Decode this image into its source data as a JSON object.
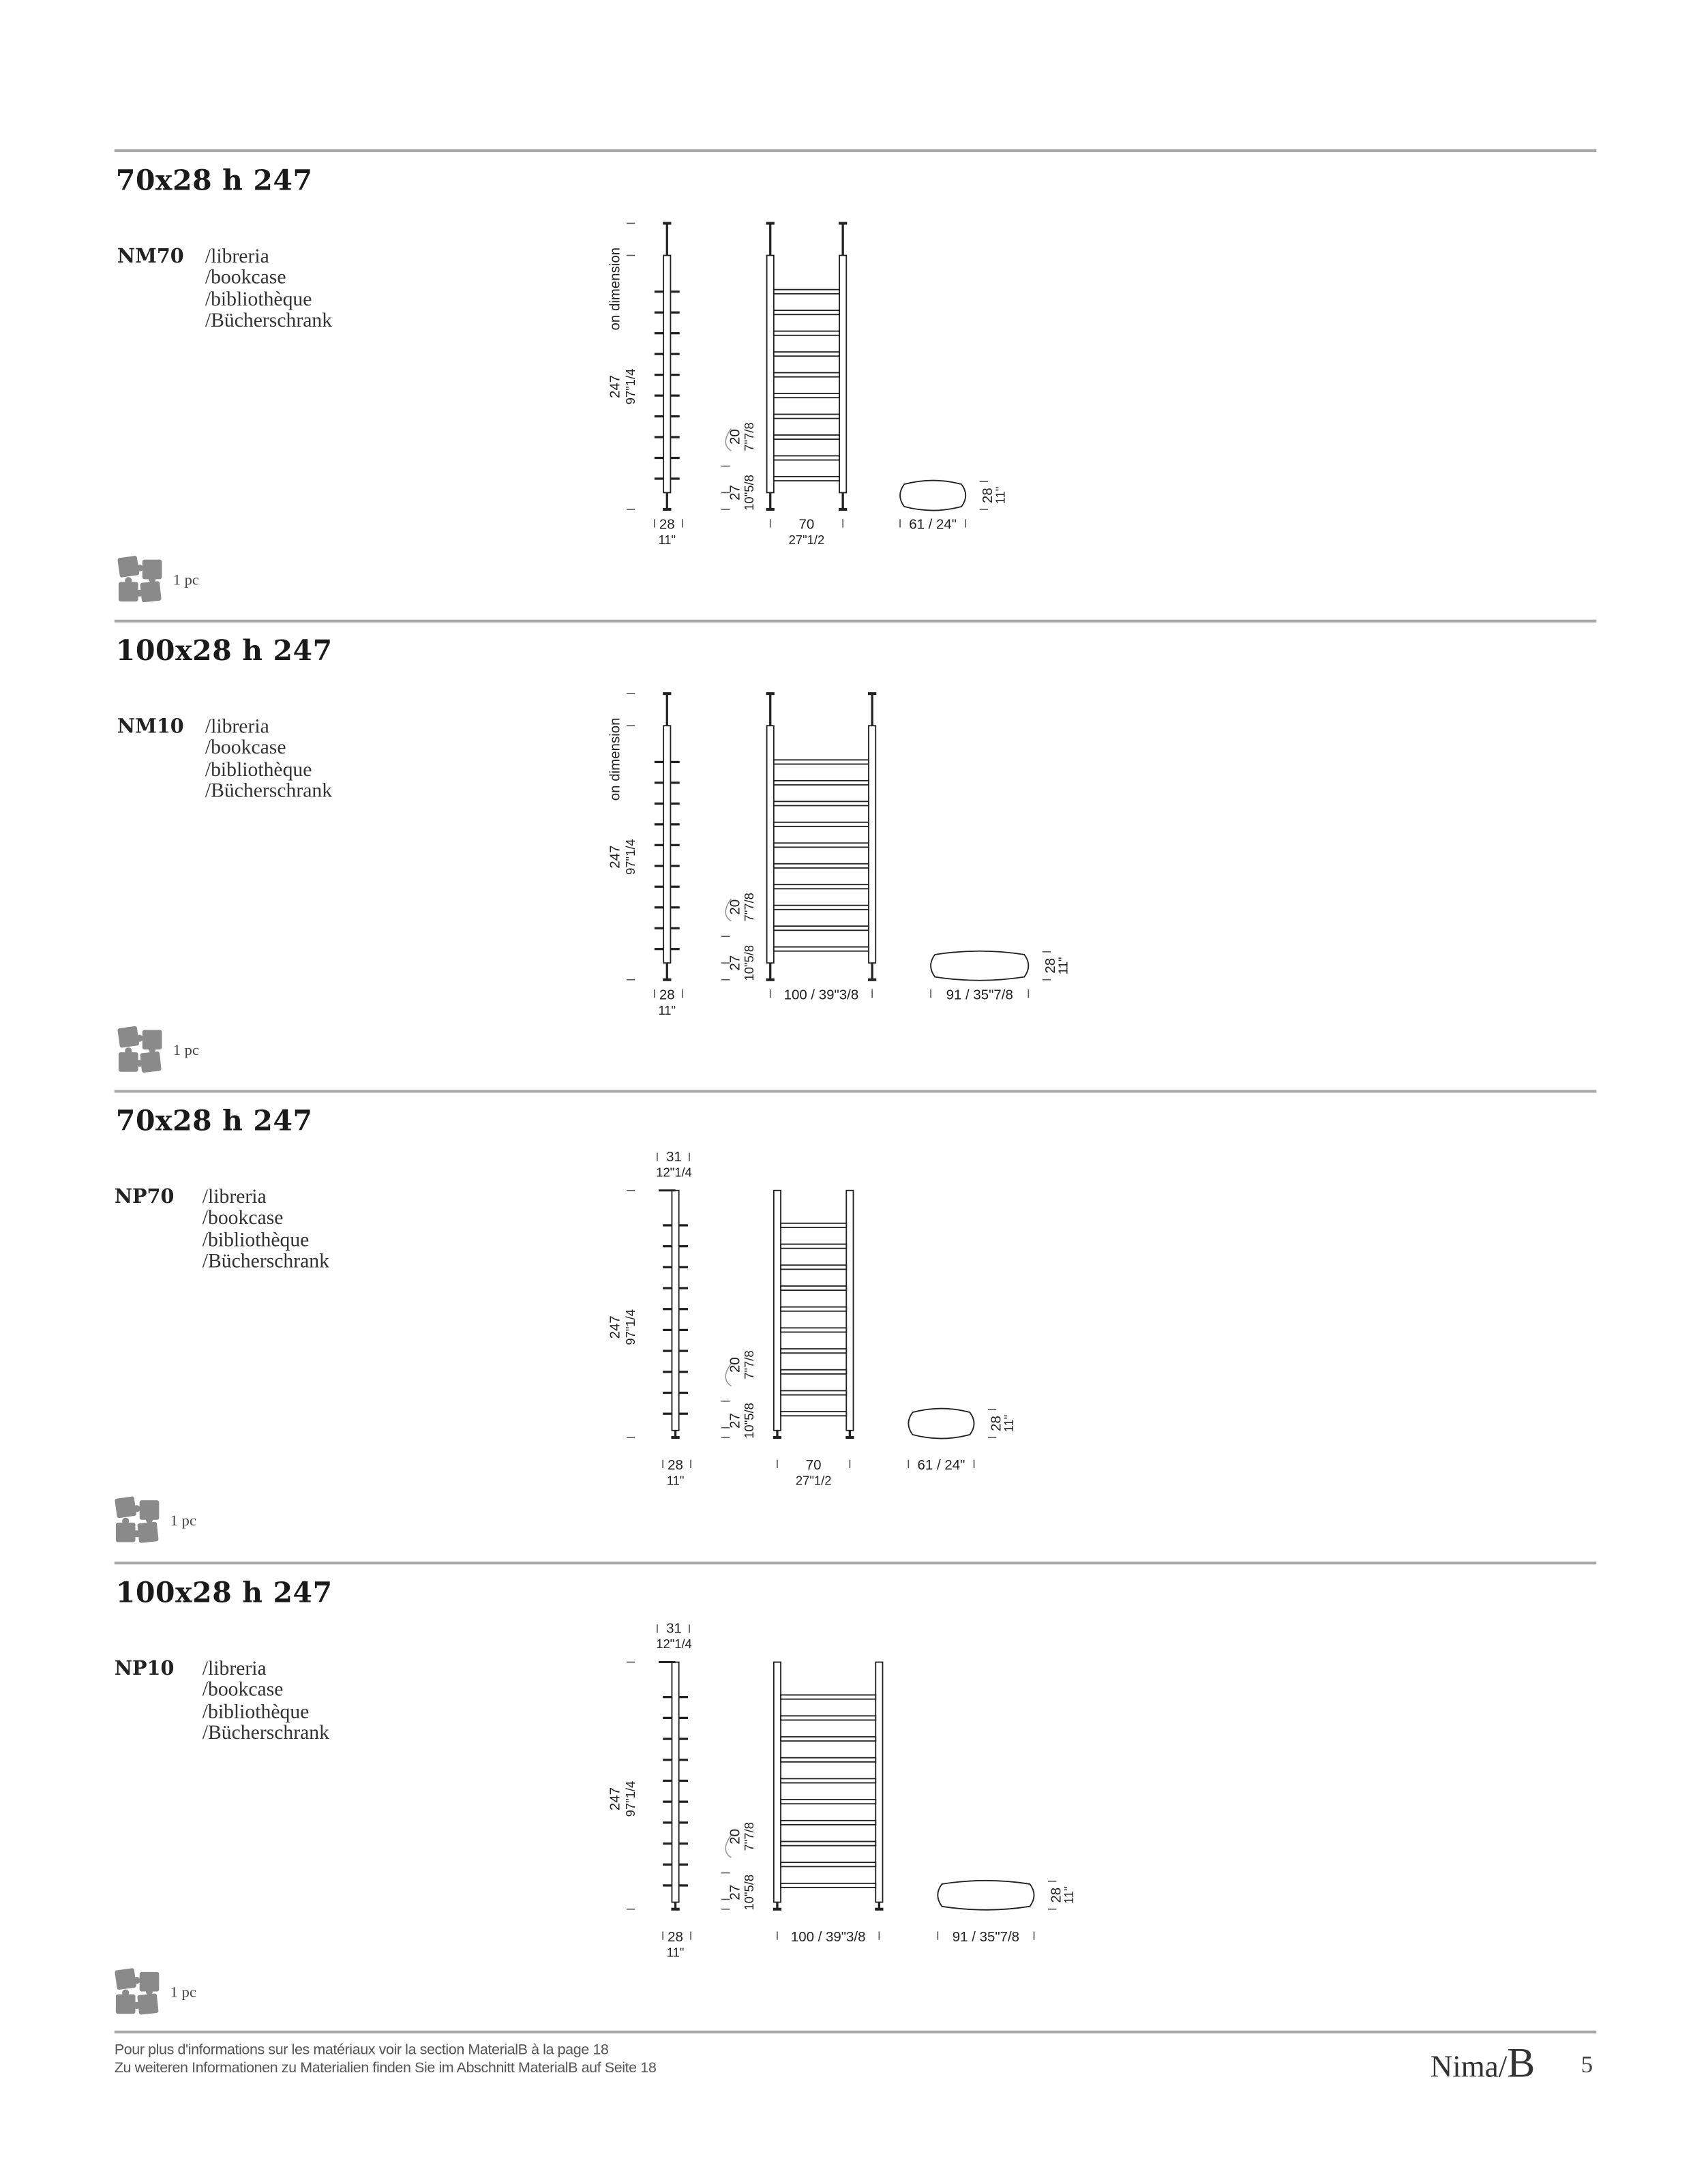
{
  "sections": [
    {
      "title": "70x28 h 247",
      "code": "NM70",
      "labels": [
        "/libreria",
        "/bookcase",
        "/bibliothèque",
        "/Bücherschrank"
      ],
      "pieces": "1 pc",
      "variant": "ceiling-fixed",
      "wide": false,
      "drawing": {
        "on_dimension": "on dimension",
        "height_cm": "247",
        "height_in": "97\"1/4",
        "depth_cm": "28",
        "depth_in": "11\"",
        "shelf_gap_cm": "20",
        "shelf_gap_in": "7\"7/8",
        "base_cm": "27",
        "base_in": "10\"5/8",
        "width_cm": "70",
        "width_in": "27\"1/2",
        "top_width": "61 / 24\"",
        "top_depth_cm": "28",
        "top_depth_in": "11\""
      }
    },
    {
      "title": "100x28 h 247",
      "code": "NM10",
      "labels": [
        "/libreria",
        "/bookcase",
        "/bibliothèque",
        "/Bücherschrank"
      ],
      "pieces": "1 pc",
      "variant": "ceiling-fixed",
      "wide": true,
      "drawing": {
        "on_dimension": "on dimension",
        "height_cm": "247",
        "height_in": "97\"1/4",
        "depth_cm": "28",
        "depth_in": "11\"",
        "shelf_gap_cm": "20",
        "shelf_gap_in": "7\"7/8",
        "base_cm": "27",
        "base_in": "10\"5/8",
        "width_cm": "100 / 39\"3/8",
        "width_in": "",
        "top_width": "91 / 35\"7/8",
        "top_depth_cm": "28",
        "top_depth_in": "11\""
      }
    },
    {
      "title": "70x28 h 247",
      "code": "NP70",
      "labels": [
        "/libreria",
        "/bookcase",
        "/bibliothèque",
        "/Bücherschrank"
      ],
      "pieces": "1 pc",
      "variant": "wall-fixed",
      "wide": false,
      "drawing": {
        "wall_cm": "31",
        "wall_in": "12\"1/4",
        "height_cm": "247",
        "height_in": "97\"1/4",
        "depth_cm": "28",
        "depth_in": "11\"",
        "shelf_gap_cm": "20",
        "shelf_gap_in": "7\"7/8",
        "base_cm": "27",
        "base_in": "10\"5/8",
        "width_cm": "70",
        "width_in": "27\"1/2",
        "top_width": "61 / 24\"",
        "top_depth_cm": "28",
        "top_depth_in": "11\""
      }
    },
    {
      "title": "100x28 h 247",
      "code": "NP10",
      "labels": [
        "/libreria",
        "/bookcase",
        "/bibliothèque",
        "/Bücherschrank"
      ],
      "pieces": "1 pc",
      "variant": "wall-fixed",
      "wide": true,
      "drawing": {
        "wall_cm": "31",
        "wall_in": "12\"1/4",
        "height_cm": "247",
        "height_in": "97\"1/4",
        "depth_cm": "28",
        "depth_in": "11\"",
        "shelf_gap_cm": "20",
        "shelf_gap_in": "7\"7/8",
        "base_cm": "27",
        "base_in": "10\"5/8",
        "width_cm": "100 / 39\"3/8",
        "width_in": "",
        "top_width": "91 / 35\"7/8",
        "top_depth_cm": "28",
        "top_depth_in": "11\""
      }
    }
  ],
  "footer": {
    "line1": "Pour plus d'informations sur les matériaux voir la section MaterialB à la page  18",
    "line2": "Zu weiteren Informationen zu Materialien finden Sie im Abschnitt MaterialB auf Seite 18",
    "brand_name": "Nima/",
    "brand_mark": "B",
    "page_number": "5"
  },
  "colors": {
    "rule": "#a8a8a8",
    "icon": "#8a8a8a"
  }
}
